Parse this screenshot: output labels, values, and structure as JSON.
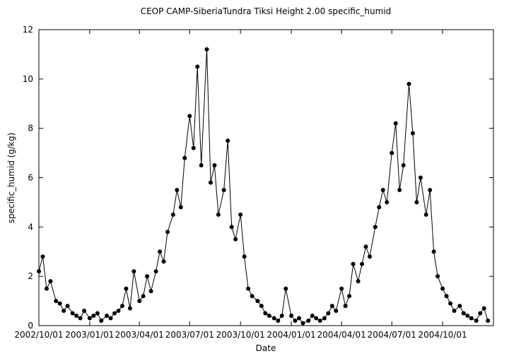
{
  "chart_data": {
    "type": "line",
    "title": "CEOP CAMP-SiberiaTundra Tiksi Height 2.00 specific_humid",
    "x_label": "Date",
    "y_label": "specific_humid (g/kg)",
    "x": [
      "2002/10/01",
      "2002/10/08",
      "2002/10/15",
      "2002/10/22",
      "2002/11/01",
      "2002/11/08",
      "2002/11/15",
      "2002/11/22",
      "2002/12/01",
      "2002/12/08",
      "2002/12/15",
      "2002/12/22",
      "2003/01/01",
      "2003/01/08",
      "2003/01/15",
      "2003/01/22",
      "2003/02/01",
      "2003/02/08",
      "2003/02/15",
      "2003/02/22",
      "2003/03/01",
      "2003/03/08",
      "2003/03/15",
      "2003/03/22",
      "2003/04/01",
      "2003/04/08",
      "2003/04/15",
      "2003/04/22",
      "2003/05/01",
      "2003/05/08",
      "2003/05/15",
      "2003/05/22",
      "2003/06/01",
      "2003/06/08",
      "2003/06/15",
      "2003/06/22",
      "2003/07/01",
      "2003/07/08",
      "2003/07/15",
      "2003/07/22",
      "2003/08/01",
      "2003/08/08",
      "2003/08/15",
      "2003/08/22",
      "2003/09/01",
      "2003/09/08",
      "2003/09/15",
      "2003/09/22",
      "2003/10/01",
      "2003/10/08",
      "2003/10/15",
      "2003/10/22",
      "2003/11/01",
      "2003/11/08",
      "2003/11/15",
      "2003/11/22",
      "2003/12/01",
      "2003/12/08",
      "2003/12/15",
      "2003/12/22",
      "2004/01/01",
      "2004/01/08",
      "2004/01/15",
      "2004/01/22",
      "2004/02/01",
      "2004/02/08",
      "2004/02/15",
      "2004/02/22",
      "2004/03/01",
      "2004/03/08",
      "2004/03/15",
      "2004/03/22",
      "2004/04/01",
      "2004/04/08",
      "2004/04/15",
      "2004/04/22",
      "2004/05/01",
      "2004/05/08",
      "2004/05/15",
      "2004/05/22",
      "2004/06/01",
      "2004/06/08",
      "2004/06/15",
      "2004/06/22",
      "2004/07/01",
      "2004/07/08",
      "2004/07/15",
      "2004/07/22",
      "2004/08/01",
      "2004/08/08",
      "2004/08/15",
      "2004/08/22",
      "2004/09/01",
      "2004/09/08",
      "2004/09/15",
      "2004/09/22",
      "2004/10/01",
      "2004/10/08",
      "2004/10/15",
      "2004/10/22",
      "2004/11/01",
      "2004/11/08",
      "2004/11/15",
      "2004/11/22",
      "2004/12/01",
      "2004/12/08",
      "2004/12/15",
      "2004/12/22"
    ],
    "series": [
      {
        "color": "#000000",
        "values": [
          2.2,
          2.8,
          1.5,
          1.8,
          1.0,
          0.9,
          0.6,
          0.8,
          0.5,
          0.4,
          0.3,
          0.6,
          0.3,
          0.4,
          0.5,
          0.2,
          0.4,
          0.3,
          0.5,
          0.6,
          0.8,
          1.5,
          0.7,
          2.2,
          1.0,
          1.2,
          2.0,
          1.4,
          2.2,
          3.0,
          2.6,
          3.8,
          4.5,
          5.5,
          4.8,
          6.8,
          8.5,
          7.2,
          10.5,
          6.5,
          11.2,
          5.8,
          6.5,
          4.5,
          5.5,
          7.5,
          4.0,
          3.5,
          4.5,
          2.8,
          1.5,
          1.2,
          1.0,
          0.8,
          0.5,
          0.4,
          0.3,
          0.2,
          0.4,
          1.5,
          0.4,
          0.2,
          0.3,
          0.1,
          0.2,
          0.4,
          0.3,
          0.2,
          0.3,
          0.5,
          0.8,
          0.6,
          1.5,
          0.8,
          1.2,
          2.5,
          1.8,
          2.5,
          3.2,
          2.8,
          4.0,
          4.8,
          5.5,
          5.0,
          7.0,
          8.2,
          5.5,
          6.5,
          9.8,
          7.8,
          5.0,
          6.0,
          4.5,
          5.5,
          3.0,
          2.0,
          1.5,
          1.2,
          0.9,
          0.6,
          0.8,
          0.5,
          0.4,
          0.3,
          0.2,
          0.5,
          0.7,
          0.2
        ]
      }
    ],
    "xlim": [
      "2002/10/01",
      "2005/01/01"
    ],
    "xticks": [
      "2002/10/01",
      "2003/01/01",
      "2003/04/01",
      "2003/07/01",
      "2003/10/01",
      "2004/01/01",
      "2004/04/01",
      "2004/07/01",
      "2004/10/01"
    ],
    "ylim": [
      0,
      12
    ],
    "yticks": [
      0,
      2,
      4,
      6,
      8,
      10,
      12
    ],
    "grid": false
  }
}
